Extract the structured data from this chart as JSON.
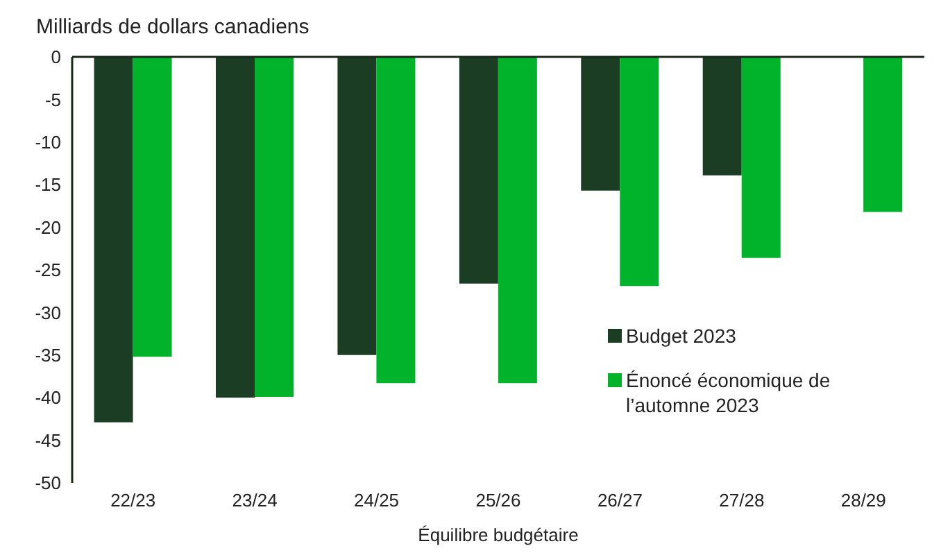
{
  "chart_data": {
    "type": "bar",
    "title": "Milliards de dollars canadiens",
    "xlabel": "Équilibre budgétaire",
    "categories": [
      "22/23",
      "23/24",
      "24/25",
      "25/26",
      "26/27",
      "27/28",
      "28/29"
    ],
    "series": [
      {
        "name": "Budget 2023",
        "color": "#1a3d24",
        "values": [
          -42.9,
          -40.0,
          -35.0,
          -26.6,
          -15.7,
          -13.9,
          null
        ]
      },
      {
        "name": "Énoncé économique de l’automne 2023",
        "color": "#00b32a",
        "values": [
          -35.2,
          -39.9,
          -38.3,
          -38.3,
          -26.9,
          -23.6,
          -18.2
        ]
      }
    ],
    "ylim": [
      -50,
      0
    ],
    "yticks": [
      0,
      -5,
      -10,
      -15,
      -20,
      -25,
      -30,
      -35,
      -40,
      -45,
      -50
    ],
    "grid": false,
    "legend": "right"
  }
}
